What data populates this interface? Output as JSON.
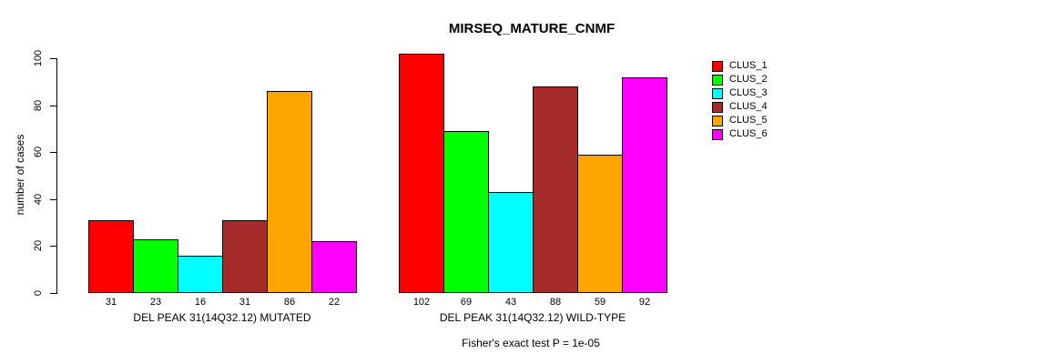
{
  "chart_data": {
    "type": "bar",
    "title": "MIRSEQ_MATURE_CNMF",
    "ylabel": "number of cases",
    "xlabel": "",
    "ylim": [
      0,
      100
    ],
    "yticks": [
      0,
      20,
      40,
      60,
      80,
      100
    ],
    "grid": false,
    "legend_position": "right",
    "legend": [
      {
        "label": "CLUS_1",
        "color": "#FF0000"
      },
      {
        "label": "CLUS_2",
        "color": "#00FF00"
      },
      {
        "label": "CLUS_3",
        "color": "#00FFFF"
      },
      {
        "label": "CLUS_4",
        "color": "#A52A2A"
      },
      {
        "label": "CLUS_5",
        "color": "#FFA500"
      },
      {
        "label": "CLUS_6",
        "color": "#FF00FF"
      }
    ],
    "groups": [
      {
        "label": "DEL PEAK 31(14Q32.12) MUTATED",
        "values": [
          31,
          23,
          16,
          31,
          86,
          22
        ]
      },
      {
        "label": "DEL PEAK 31(14Q32.12) WILD-TYPE",
        "values": [
          102,
          69,
          43,
          88,
          59,
          92
        ]
      }
    ],
    "annotation": "Fisher's exact test P = 1e-05"
  }
}
